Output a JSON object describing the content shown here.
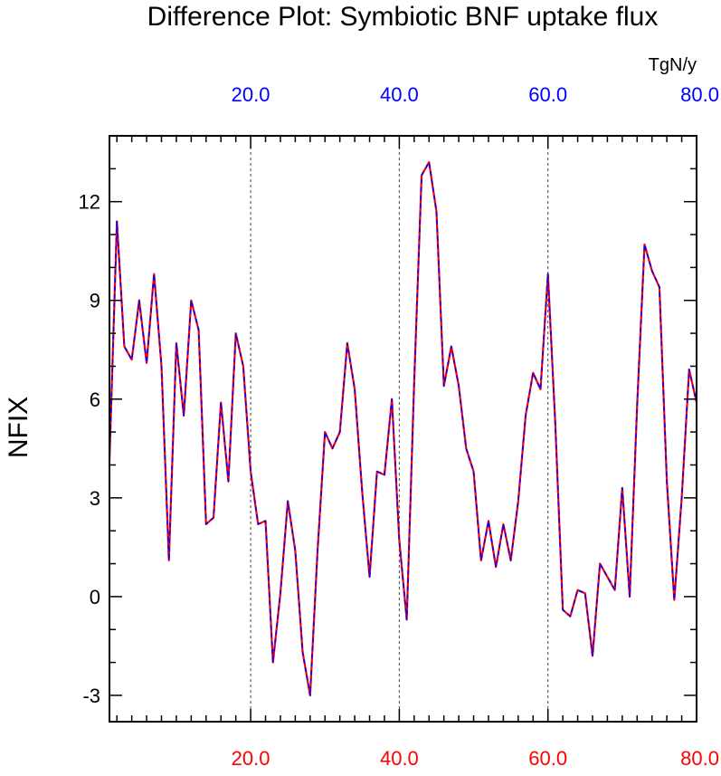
{
  "chart_data": {
    "type": "line",
    "title": "Difference Plot: Symbiotic BNF uptake flux",
    "units_label": "TgN/y",
    "ylabel": "NFIX",
    "xlabel": "",
    "xlim": [
      1,
      80
    ],
    "ylim": [
      -3.8,
      14
    ],
    "yticks": [
      -3,
      0,
      3,
      6,
      9,
      12
    ],
    "yticks_labels": [
      "-3",
      "0",
      "3",
      "6",
      "9",
      "12"
    ],
    "xticks": [
      20,
      40,
      60,
      80
    ],
    "xticks_top_labels": [
      "20.0",
      "40.0",
      "60.0",
      "80.0"
    ],
    "xticks_bottom_labels": [
      "20.0",
      "40.0",
      "60.0",
      "80.0"
    ],
    "x_minor_step": 2,
    "y_minor_step": 1,
    "grid": "vertical dashed at major x ticks",
    "legend": "none",
    "colors": {
      "top_axis_labels": "#0000ff",
      "bottom_axis_labels": "#ff0000",
      "series_a": "#ff0000",
      "series_b": "#0000ff"
    },
    "series": [
      {
        "values": [
          4.1,
          11.4,
          7.6,
          7.2,
          9.0,
          7.1,
          9.8,
          7.0,
          1.1,
          7.7,
          5.5,
          9.0,
          8.1,
          2.2,
          2.4,
          5.9,
          3.5,
          8.0,
          7.0,
          3.8,
          2.2,
          2.3,
          -2.0,
          0.1,
          2.9,
          1.4,
          -1.7,
          -3.0,
          1.4,
          5.0,
          4.5,
          5.0,
          7.7,
          6.3,
          3.2,
          0.6,
          3.8,
          3.7,
          6.0,
          1.7,
          -0.7,
          6.5,
          12.8,
          13.2,
          11.7,
          6.4,
          7.6,
          6.4,
          4.5,
          3.8,
          1.1,
          2.3,
          0.9,
          2.2,
          1.1,
          2.9,
          5.5,
          6.8,
          6.3,
          9.8,
          5.2,
          -0.4,
          -0.6,
          0.2,
          0.1,
          -1.8,
          1.0,
          0.6,
          0.2,
          3.3,
          0.0,
          5.8,
          10.7,
          9.9,
          9.4,
          3.5,
          -0.1,
          3.0,
          6.9,
          5.9
        ]
      },
      {
        "values": [
          4.1,
          11.4,
          7.6,
          7.2,
          9.0,
          7.1,
          9.8,
          7.0,
          1.1,
          7.7,
          5.5,
          9.0,
          8.1,
          2.2,
          2.4,
          5.9,
          3.5,
          8.0,
          7.0,
          3.8,
          2.2,
          2.3,
          -2.0,
          0.1,
          2.9,
          1.4,
          -1.7,
          -3.0,
          1.4,
          5.0,
          4.5,
          5.0,
          7.7,
          6.3,
          3.2,
          0.6,
          3.8,
          3.7,
          6.0,
          1.7,
          -0.7,
          6.5,
          12.8,
          13.2,
          11.7,
          6.4,
          7.6,
          6.4,
          4.5,
          3.8,
          1.1,
          2.3,
          0.9,
          2.2,
          1.1,
          2.9,
          5.5,
          6.8,
          6.3,
          9.8,
          5.2,
          -0.4,
          -0.6,
          0.2,
          0.1,
          -1.8,
          1.0,
          0.6,
          0.2,
          3.3,
          0.0,
          5.8,
          10.7,
          9.9,
          9.4,
          3.5,
          -0.1,
          3.0,
          6.9,
          5.9
        ]
      }
    ]
  }
}
